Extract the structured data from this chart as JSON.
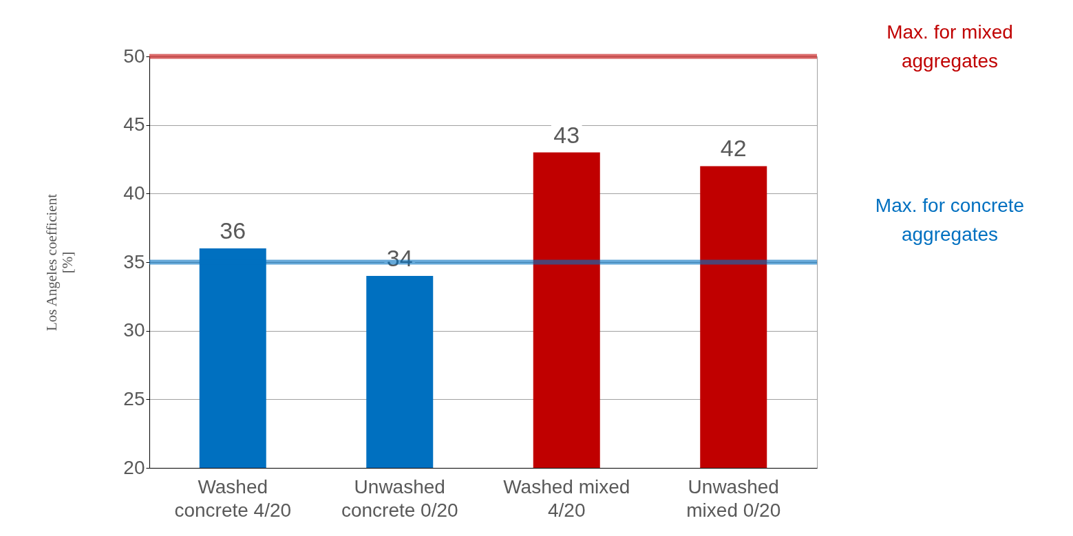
{
  "chart_data": {
    "type": "bar",
    "ylabel": "Los Angeles coefficient [%]",
    "categories": [
      "Washed concrete 4/20",
      "Unwashed concrete 0/20",
      "Washed mixed 4/20",
      "Unwashed mixed 0/20"
    ],
    "values": [
      36,
      34,
      43,
      42
    ],
    "colors": [
      "#0070c0",
      "#0070c0",
      "#c00000",
      "#c00000"
    ],
    "ylim": [
      20,
      50
    ],
    "yticks": [
      20,
      25,
      30,
      35,
      40,
      45,
      50
    ],
    "grid": "y",
    "data_labels": true,
    "ref_lines": [
      {
        "axis": "y",
        "value": 50,
        "label": "Max. for mixed aggregates",
        "color": "#c00000"
      },
      {
        "axis": "y",
        "value": 35,
        "label": "Max. for concrete aggregates",
        "color": "#0070c0"
      }
    ]
  }
}
